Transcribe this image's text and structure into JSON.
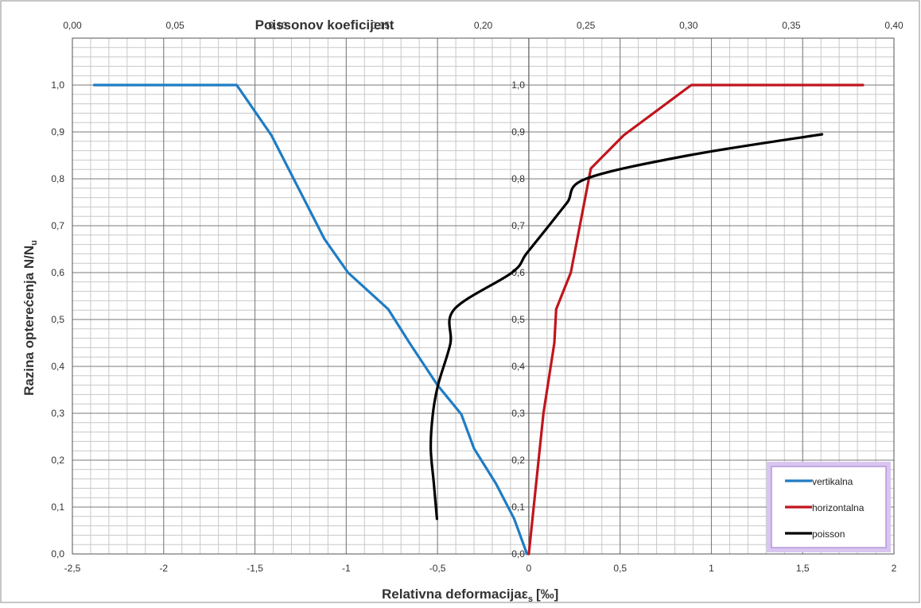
{
  "chart_data": {
    "type": "line",
    "title": "Poissonov koeficijent",
    "xlabel": "Relativna deformacija",
    "xlabel_symbol": "ε",
    "xlabel_subscript": "s",
    "xlabel_unit": "[‰]",
    "ylabel": "Razina opterećenja N/N",
    "ylabel_subscript": "u",
    "x_axis": {
      "range": [
        -2.5,
        2
      ],
      "ticks": [
        "-2,5",
        "-2",
        "-1,5",
        "-1",
        "-0,5",
        "0",
        "0,5",
        "1",
        "1,5",
        "2"
      ]
    },
    "x2_axis": {
      "range": [
        0,
        0.4
      ],
      "ticks": [
        "0,00",
        "0,05",
        "0,10",
        "0,15",
        "0,20",
        "0,25",
        "0,30",
        "0,35",
        "0,40"
      ]
    },
    "y_axis": {
      "range": [
        0,
        1.1
      ],
      "ticks": [
        "0,0",
        "0,1",
        "0,2",
        "0,3",
        "0,4",
        "0,5",
        "0,6",
        "0,7",
        "0,8",
        "0,9",
        "1,0"
      ]
    },
    "secondary_y_ticks_at_x0": true,
    "grid": true,
    "legend_position": "bottom-right",
    "series": [
      {
        "name": "vertikalna",
        "color": "#1f7cc4",
        "axis": "primary",
        "points": [
          [
            -2.38,
            1.0
          ],
          [
            -1.6,
            1.0
          ],
          [
            -1.41,
            0.893
          ],
          [
            -1.12,
            0.672
          ],
          [
            -0.99,
            0.6
          ],
          [
            -0.77,
            0.522
          ],
          [
            -0.65,
            0.448
          ],
          [
            -0.5,
            0.36
          ],
          [
            -0.37,
            0.298
          ],
          [
            -0.3,
            0.225
          ],
          [
            -0.18,
            0.15
          ],
          [
            -0.08,
            0.075
          ],
          [
            -0.01,
            0.0
          ]
        ]
      },
      {
        "name": "horizontalna",
        "color": "#c0161d",
        "axis": "primary",
        "points": [
          [
            0.0,
            0.0
          ],
          [
            0.04,
            0.15
          ],
          [
            0.08,
            0.3
          ],
          [
            0.14,
            0.45
          ],
          [
            0.15,
            0.522
          ],
          [
            0.23,
            0.6
          ],
          [
            0.34,
            0.822
          ],
          [
            0.52,
            0.893
          ],
          [
            0.89,
            1.0
          ],
          [
            1.83,
            1.0
          ]
        ]
      },
      {
        "name": "poisson",
        "color": "#000000",
        "axis": "secondary",
        "points": [
          [
            0.1775,
            0.075
          ],
          [
            0.176,
            0.15
          ],
          [
            0.1745,
            0.225
          ],
          [
            0.1755,
            0.298
          ],
          [
            0.178,
            0.36
          ],
          [
            0.184,
            0.448
          ],
          [
            0.186,
            0.522
          ],
          [
            0.214,
            0.6
          ],
          [
            0.221,
            0.64
          ],
          [
            0.232,
            0.7
          ],
          [
            0.241,
            0.75
          ],
          [
            0.25,
            0.8
          ],
          [
            0.3,
            0.85
          ],
          [
            0.365,
            0.895
          ]
        ]
      }
    ]
  }
}
